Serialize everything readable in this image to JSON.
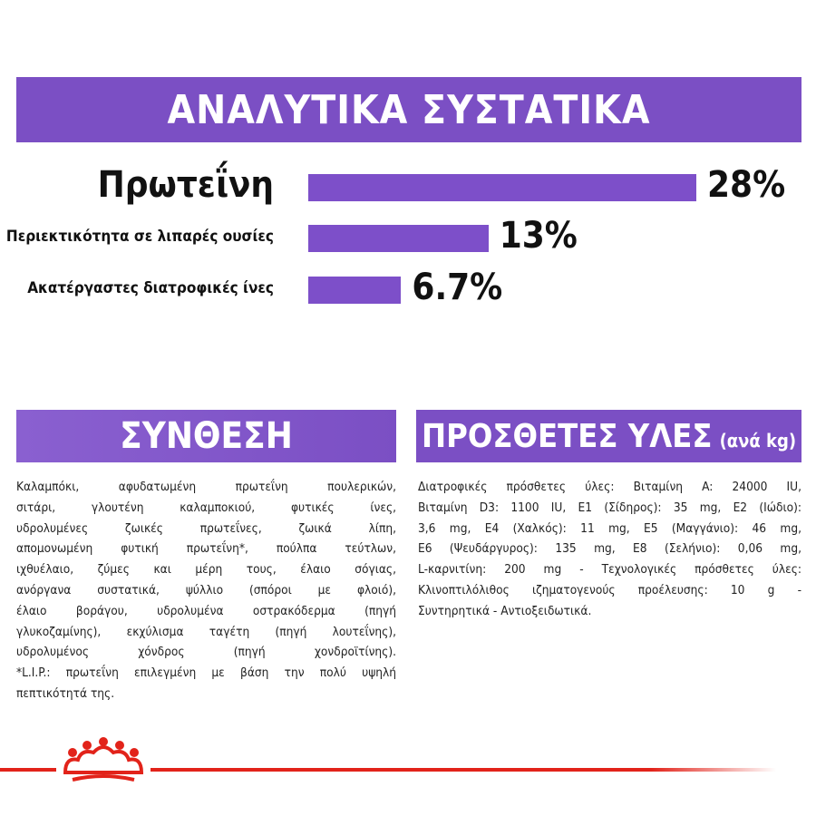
{
  "header": {
    "title": "ΑΝΑΛΥΤΙΚΑ ΣΥΣΤΑΤΙΚΑ"
  },
  "chart_data": {
    "type": "bar",
    "orientation": "horizontal",
    "color": "#7d4fc9",
    "categories": [
      "Πρωτεΐνη",
      "Περιεκτικότητα σε λιπαρές ουσίες",
      "Ακατέργαστες διατροφικές ίνες"
    ],
    "values": [
      28,
      13,
      6.7
    ],
    "value_labels": [
      "28%",
      "13%",
      "6.7%"
    ]
  },
  "composition": {
    "title": "ΣΥΝΘΕΣΗ",
    "lines": [
      "Καλαμπόκι, αφυδατωμένη πρωτεΐνη πουλερικών,",
      "σιτάρι, γλουτένη καλαμποκιού, φυτικές ίνες,",
      "υδρολυμένες ζωικές πρωτεΐνες, ζωικά λίπη,",
      "απομονωμένη φυτική πρωτεΐνη*, πούλπα τεύτλων,",
      "ιχθυέλαιο, ζύμες και μέρη τους, έλαιο σόγιας,",
      "ανόργανα συστατικά, ψύλλιο (σπόροι με φλοιό),",
      "έλαιο βοράγου, υδρολυμένα οστρακόδερμα (πηγή",
      "γλυκοζαμίνης), εκχύλισμα ταγέτη (πηγή λουτεΐνης),",
      "υδρολυμένος χόνδρος (πηγή χονδροϊτίνης).",
      "*L.I.P.: πρωτεΐνη επιλεγμένη με βάση την πολύ υψηλή",
      "πεπτικότητά της."
    ]
  },
  "additives": {
    "title": "ΠΡΟΣΘΕΤΕΣ ΥΛΕΣ",
    "unit": "(ανά kg)",
    "lines": [
      "Διατροφικές πρόσθετες ύλες: Βιταμίνη A: 24000 IU,",
      "Βιταμίνη D3: 1100 IU, E1 (Σίδηρος): 35 mg, E2 (Ιώδιο):",
      "3,6 mg, E4 (Χαλκός): 11 mg, E5 (Μαγγάνιο): 46 mg,",
      "E6 (Ψευδάργυρος): 135 mg, E8 (Σελήνιο): 0,06 mg,",
      "L-καρνιτίνη: 200 mg - Τεχνολογικές πρόσθετες ύλες:",
      "Κλινοπτιλόλιθος ιζηματογενούς προέλευσης: 10 g -",
      "Συντηρητικά - Αντιοξειδωτικά."
    ]
  }
}
